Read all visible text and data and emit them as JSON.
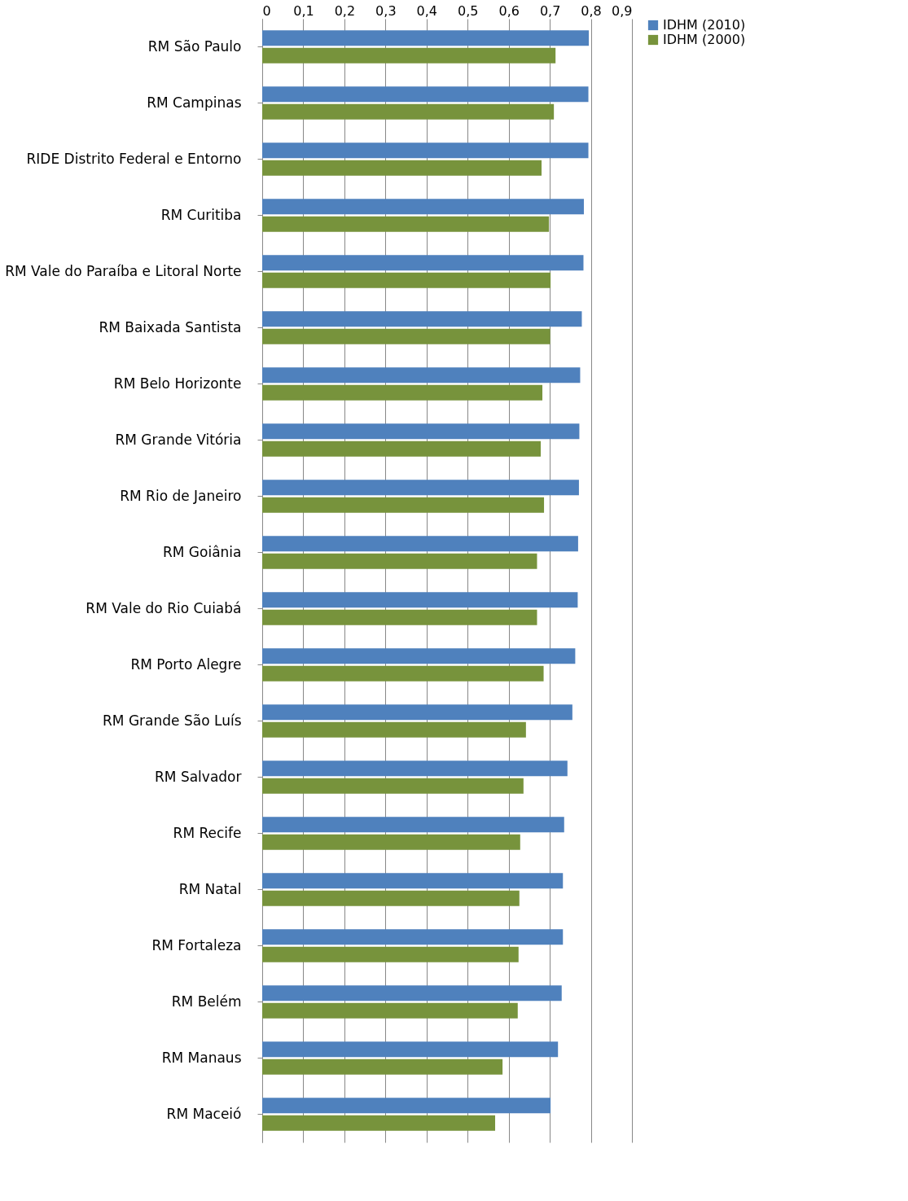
{
  "chart_data": {
    "type": "bar",
    "orientation": "horizontal",
    "categories": [
      "RM São Paulo",
      "RM Campinas",
      "RIDE Distrito Federal e Entorno",
      "RM Curitiba",
      "RM Vale do Paraíba e Litoral Norte",
      "RM Baixada Santista",
      "RM Belo Horizonte",
      "RM Grande Vitória",
      "RM Rio de Janeiro",
      "RM Goiânia",
      "RM Vale do Rio Cuiabá",
      "RM Porto Alegre",
      "RM Grande São Luís",
      "RM Salvador",
      "RM Recife",
      "RM Natal",
      "RM Fortaleza",
      "RM Belém",
      "RM Manaus",
      "RM Maceió"
    ],
    "series": [
      {
        "name": "IDHM (2010)",
        "color": "#4f81bd",
        "values": [
          0.795,
          0.794,
          0.794,
          0.783,
          0.782,
          0.778,
          0.774,
          0.772,
          0.771,
          0.769,
          0.768,
          0.762,
          0.755,
          0.743,
          0.735,
          0.732,
          0.732,
          0.729,
          0.72,
          0.702
        ]
      },
      {
        "name": "IDHM (2000)",
        "color": "#77933c",
        "values": [
          0.714,
          0.71,
          0.68,
          0.698,
          0.702,
          0.701,
          0.682,
          0.678,
          0.686,
          0.669,
          0.669,
          0.685,
          0.642,
          0.636,
          0.628,
          0.626,
          0.624,
          0.622,
          0.585,
          0.567
        ]
      }
    ],
    "xlim": [
      0,
      0.9
    ],
    "xticks": [
      0,
      {
        "value": 0.1,
        "label": "0,1"
      },
      {
        "value": 0.2,
        "label": "0,2"
      },
      {
        "value": 0.3,
        "label": "0,3"
      },
      {
        "value": 0.4,
        "label": "0,4"
      },
      {
        "value": 0.5,
        "label": "0,5"
      },
      {
        "value": 0.6,
        "label": "0,6"
      },
      {
        "value": 0.7,
        "label": "0,7"
      },
      {
        "value": 0.8,
        "label": "0,8"
      },
      {
        "value": 0.9,
        "label": "0,9"
      }
    ],
    "grid": "x",
    "legend": "right"
  }
}
